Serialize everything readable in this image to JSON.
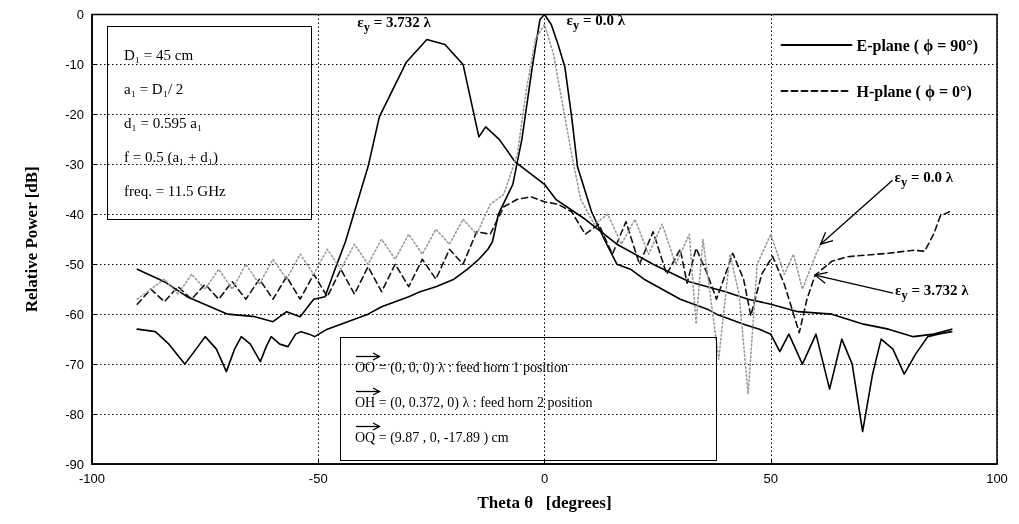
{
  "chart_data": {
    "type": "line",
    "xlabel": "Theta θ   [degrees]",
    "ylabel": "Relative Power [dB]",
    "xlim": [
      -100,
      100
    ],
    "ylim": [
      -90,
      0
    ],
    "xticks": [
      -100,
      -50,
      0,
      50,
      100
    ],
    "yticks": [
      -90,
      -80,
      -70,
      -60,
      -50,
      -40,
      -30,
      -20,
      -10,
      0
    ],
    "grid": true,
    "legend": "top right",
    "marker": "none",
    "series": [
      {
        "name": "E-plane ( ϕ = 90°)",
        "color": "#000000",
        "line_style": "solid",
        "x": [
          -90,
          -84,
          -79,
          -70,
          -64,
          -60,
          -57,
          -54,
          -51,
          -48.5,
          -46.5,
          -44,
          -39,
          -36.5,
          -30.5,
          -26,
          -22,
          -18,
          -14.5,
          -13,
          -10,
          -6.5,
          0,
          2.5,
          9,
          16,
          24,
          32,
          40,
          45,
          50,
          56,
          63.5,
          70.5,
          76,
          81.5,
          86,
          90
        ],
        "values": [
          -51,
          -53.5,
          -56.5,
          -60,
          -60.5,
          -61.5,
          -59.5,
          -60.5,
          -57,
          -56.5,
          -51.5,
          -45.5,
          -30.5,
          -20.5,
          -9.5,
          -5,
          -6,
          -10,
          -24.5,
          -22.5,
          -25,
          -29.5,
          -34,
          -37,
          -41,
          -46,
          -50,
          -53.5,
          -55.5,
          -57,
          -58,
          -59.5,
          -60,
          -62,
          -63,
          -64.5,
          -64,
          -63
        ]
      },
      {
        "color": "#000000",
        "line_style": "solid",
        "x": [
          -90,
          -86,
          -83,
          -79.5,
          -77,
          -75,
          -72.5,
          -70.3,
          -68.5,
          -67,
          -65,
          -62.8,
          -61.5,
          -60.4,
          -58.5,
          -56.7,
          -55,
          -53.8,
          -52,
          -50.8,
          -48,
          -45,
          -42,
          -39,
          -36,
          -33,
          -30,
          -27.5,
          -24,
          -20,
          -17,
          -14.5,
          -12.5,
          -11.5,
          -10.2,
          -7,
          -5,
          -2.7,
          -1,
          0,
          1.5,
          3,
          4.5,
          6,
          7.3,
          10.4,
          13.2,
          16,
          19,
          22,
          25,
          27,
          30,
          33,
          36,
          38,
          41,
          44,
          47.5,
          50,
          52,
          54,
          57,
          60,
          63,
          65.7,
          68,
          70.3,
          72.5,
          74.4,
          77,
          79.5,
          82,
          84.7,
          87,
          90
        ],
        "values": [
          -63,
          -63.5,
          -66,
          -70,
          -67,
          -64.5,
          -67,
          -71.5,
          -67,
          -64.5,
          -66,
          -69.5,
          -66.5,
          -64.5,
          -66,
          -66.5,
          -64,
          -63.5,
          -64,
          -64.5,
          -63,
          -62,
          -61,
          -60,
          -58.5,
          -57.5,
          -56.5,
          -55.5,
          -54.5,
          -53,
          -51,
          -49,
          -47,
          -45.5,
          -40,
          -34,
          -25,
          -10.5,
          -1,
          0,
          -2,
          -6,
          -10.5,
          -20.5,
          -30.5,
          -39.5,
          -45,
          -50,
          -51,
          -53,
          -54.5,
          -55.5,
          -57,
          -58,
          -59,
          -60,
          -61,
          -62,
          -63,
          -64,
          -67.5,
          -64,
          -70,
          -64,
          -75,
          -65,
          -70,
          -83.5,
          -72,
          -65,
          -67,
          -72,
          -68,
          -64.5,
          -64,
          -63.5
        ]
      },
      {
        "name": "H-plane ( ϕ = 0°)",
        "color": "#111111",
        "line_style": "dashed",
        "x": [
          -90,
          -87,
          -84,
          -81,
          -78,
          -75,
          -72,
          -69,
          -66,
          -63,
          -60,
          -57,
          -54,
          -51,
          -48,
          -45,
          -42,
          -39,
          -36,
          -33,
          -30,
          -27,
          -24,
          -21,
          -18,
          -15,
          -12,
          -9,
          -6,
          -3,
          0,
          3,
          6,
          9,
          12,
          15,
          18,
          21,
          24,
          27,
          30,
          31.5,
          33.5,
          36,
          38,
          40,
          41.6,
          44,
          45.6,
          48,
          50.4,
          53,
          56.3,
          58,
          59.8,
          63.5,
          67,
          70.7,
          76,
          81.6,
          84,
          86,
          87.5,
          89.5
        ],
        "values": [
          -58,
          -55,
          -57.5,
          -54.5,
          -57,
          -54,
          -57,
          -53.5,
          -57,
          -53,
          -57,
          -52.5,
          -57,
          -52,
          -56.5,
          -51,
          -56,
          -50.5,
          -55.5,
          -50,
          -54.5,
          -49,
          -53,
          -47,
          -50,
          -43.5,
          -44,
          -38.5,
          -37,
          -36.5,
          -37.5,
          -38,
          -39.5,
          -44,
          -42,
          -48,
          -41.5,
          -50,
          -43.5,
          -52,
          -47,
          -53.8,
          -46.8,
          -52,
          -57,
          -52,
          -47.8,
          -53,
          -60.3,
          -52,
          -48.4,
          -54,
          -63.7,
          -57,
          -52.2,
          -49.4,
          -48.5,
          -48.2,
          -47.8,
          -47.2,
          -47.4,
          -44,
          -40.3,
          -39.5
        ]
      },
      {
        "color": "#9a9a9a",
        "line_style": "dotted",
        "x": [
          -90,
          -87,
          -84,
          -81,
          -78,
          -75,
          -72,
          -69,
          -66,
          -63,
          -60,
          -57,
          -54,
          -51,
          -48,
          -45,
          -42,
          -39,
          -36,
          -33,
          -30,
          -27,
          -24,
          -21,
          -18,
          -15,
          -12,
          -9,
          -6,
          -4,
          -2,
          0,
          2,
          4,
          6,
          8,
          11,
          14,
          17,
          20,
          23,
          26,
          29,
          32,
          33.5,
          35,
          38.5,
          41,
          43,
          45,
          47,
          50,
          53,
          55,
          57,
          60,
          61
        ],
        "values": [
          -57,
          -55,
          -53,
          -56,
          -52,
          -55,
          -51,
          -55,
          -50,
          -54,
          -49,
          -53,
          -48,
          -52,
          -47,
          -51,
          -46,
          -50,
          -45,
          -49,
          -44,
          -48,
          -43,
          -46,
          -41,
          -44,
          -38,
          -36,
          -28,
          -15,
          -5,
          -2,
          -8,
          -18,
          -28,
          -37,
          -42,
          -40,
          -46,
          -41,
          -48,
          -42,
          -50,
          -44,
          -62,
          -45,
          -69,
          -48,
          -56,
          -76,
          -50,
          -44,
          -52,
          -48,
          -55,
          -48,
          -46
        ]
      }
    ],
    "annotations": [
      {
        "text": "ε$_{y}$ = 3.732 λ",
        "x": -26,
        "y": -5
      },
      {
        "text": "ε$_{y}$ = 0.0 λ",
        "x": 0,
        "y": 0
      },
      {
        "text": "ε$_{y}$ = 0.0 λ",
        "x": 61,
        "y": -46
      },
      {
        "text": "ε$_{y}$ = 3.732 λ",
        "x": 59.8,
        "y": -52.2
      },
      "D₁ = 45 cm\na₁ = D₁/ 2\nd₁ = 0.595 a₁\nf = 0.5 (a₁ + d₁)\nfreq. = 11.5 GHz",
      "OO = (0, 0, 0) λ : feed horn 1 position\nOH = (0, 0.372, 0) λ : feed horn 2 position\nOQ = (9.87 , 0, -17.89 ) cm"
    ]
  }
}
